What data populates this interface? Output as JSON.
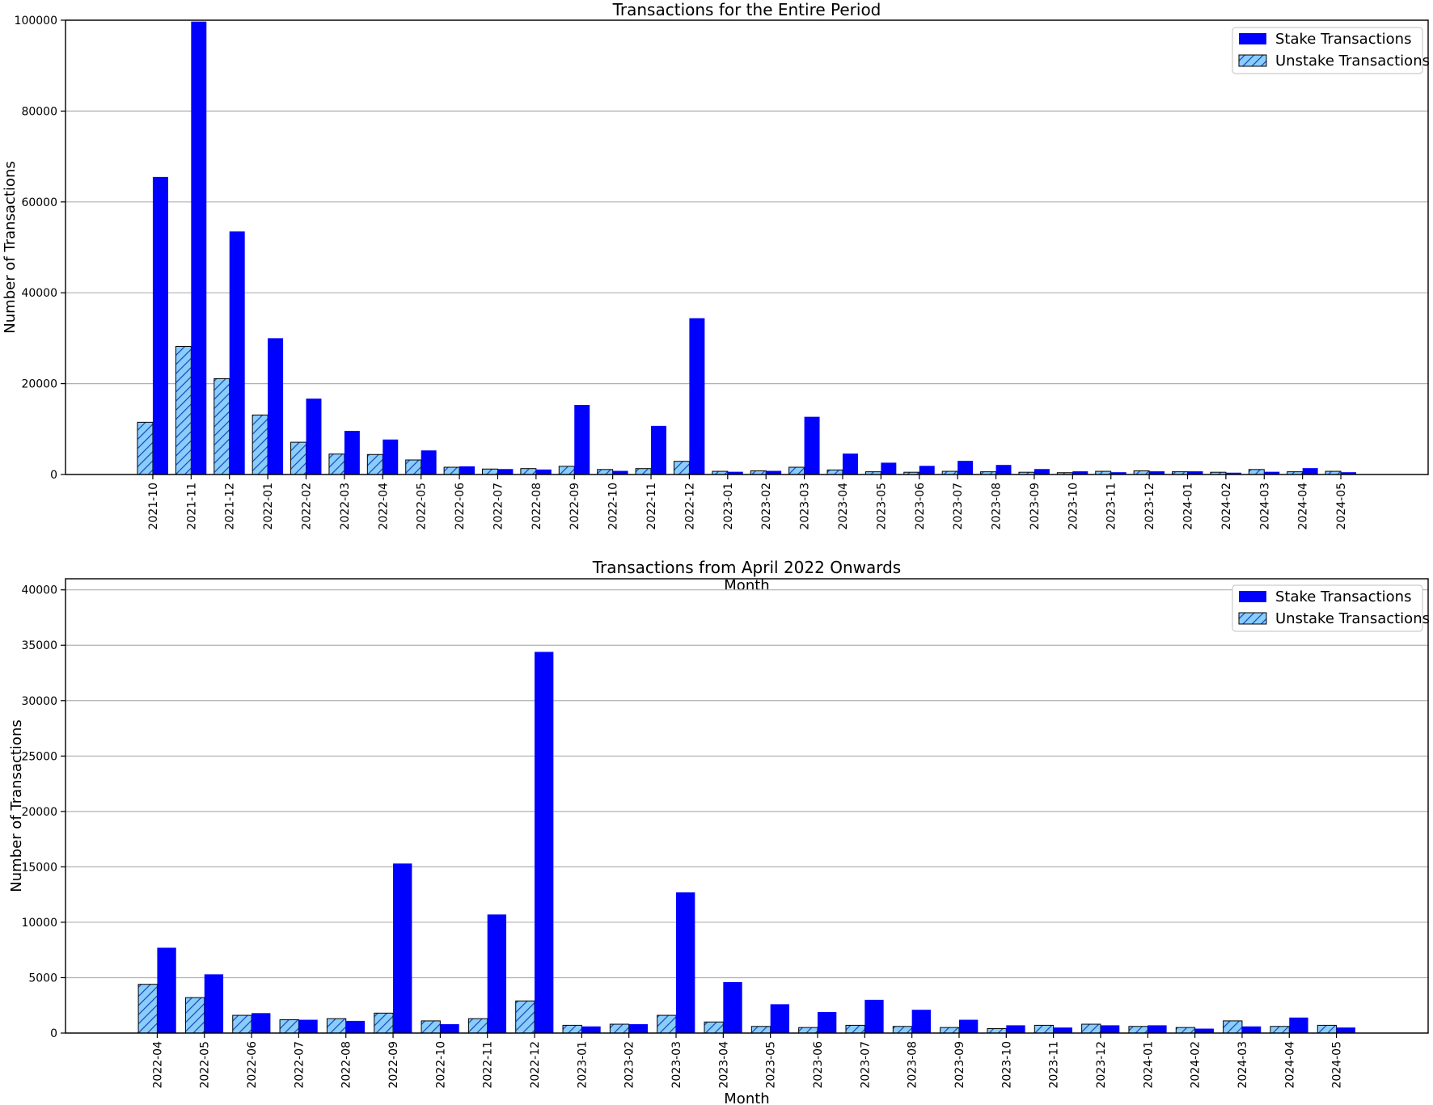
{
  "colors": {
    "stake": "#0000ff",
    "unstake": "#87cefa",
    "hatch": "#1f3fbf",
    "grid": "#b0b0b0",
    "axes": "#000000",
    "legend_border": "#cccccc"
  },
  "chart_data": [
    {
      "type": "bar",
      "title": "Transactions for the Entire Period",
      "xlabel": "Month",
      "ylabel": "Number of Transactions",
      "ylim": [
        0,
        100000
      ],
      "yticks": [
        "0",
        "20000",
        "40000",
        "60000",
        "80000",
        "100000"
      ],
      "ytick_values": [
        0,
        20000,
        40000,
        60000,
        80000,
        100000
      ],
      "grid": "horizontal",
      "legend_position": "top-right",
      "categories": [
        "2021-10",
        "2021-11",
        "2021-12",
        "2022-01",
        "2022-02",
        "2022-03",
        "2022-04",
        "2022-05",
        "2022-06",
        "2022-07",
        "2022-08",
        "2022-09",
        "2022-10",
        "2022-11",
        "2022-12",
        "2023-01",
        "2023-02",
        "2023-03",
        "2023-04",
        "2023-05",
        "2023-06",
        "2023-07",
        "2023-08",
        "2023-09",
        "2023-10",
        "2023-11",
        "2023-12",
        "2024-01",
        "2024-02",
        "2024-03",
        "2024-04",
        "2024-05"
      ],
      "series": [
        {
          "name": "Stake Transactions",
          "style": "solid",
          "values": [
            65500,
            99700,
            53500,
            30000,
            16700,
            9600,
            7700,
            5300,
            1800,
            1200,
            1100,
            15300,
            800,
            10700,
            34400,
            600,
            800,
            12700,
            4600,
            2600,
            1900,
            3000,
            2100,
            1200,
            700,
            500,
            700,
            700,
            400,
            600,
            1400,
            500
          ]
        },
        {
          "name": "Unstake Transactions",
          "style": "hatched",
          "values": [
            11500,
            28200,
            21100,
            13100,
            7100,
            4500,
            4400,
            3200,
            1600,
            1200,
            1300,
            1800,
            1100,
            1300,
            2900,
            700,
            800,
            1600,
            1000,
            600,
            500,
            700,
            600,
            500,
            400,
            700,
            800,
            600,
            500,
            1100,
            600,
            700
          ]
        }
      ]
    },
    {
      "type": "bar",
      "title": "Transactions from April 2022 Onwards",
      "xlabel": "Month",
      "ylabel": "Number of Transactions",
      "ylim": [
        0,
        41000
      ],
      "yticks": [
        "0",
        "5000",
        "10000",
        "15000",
        "20000",
        "25000",
        "30000",
        "35000",
        "40000"
      ],
      "ytick_values": [
        0,
        5000,
        10000,
        15000,
        20000,
        25000,
        30000,
        35000,
        40000
      ],
      "grid": "horizontal",
      "legend_position": "top-right",
      "categories": [
        "2022-04",
        "2022-05",
        "2022-06",
        "2022-07",
        "2022-08",
        "2022-09",
        "2022-10",
        "2022-11",
        "2022-12",
        "2023-01",
        "2023-02",
        "2023-03",
        "2023-04",
        "2023-05",
        "2023-06",
        "2023-07",
        "2023-08",
        "2023-09",
        "2023-10",
        "2023-11",
        "2023-12",
        "2024-01",
        "2024-02",
        "2024-03",
        "2024-04",
        "2024-05"
      ],
      "series": [
        {
          "name": "Stake Transactions",
          "style": "solid",
          "values": [
            7700,
            5300,
            1800,
            1200,
            1100,
            15300,
            800,
            10700,
            34400,
            600,
            800,
            12700,
            4600,
            2600,
            1900,
            3000,
            2100,
            1200,
            700,
            500,
            700,
            700,
            400,
            600,
            1400,
            500
          ]
        },
        {
          "name": "Unstake Transactions",
          "style": "hatched",
          "values": [
            4400,
            3200,
            1600,
            1200,
            1300,
            1800,
            1100,
            1300,
            2900,
            700,
            800,
            1600,
            1000,
            600,
            500,
            700,
            600,
            500,
            400,
            700,
            800,
            600,
            500,
            1100,
            600,
            700
          ]
        }
      ]
    }
  ]
}
